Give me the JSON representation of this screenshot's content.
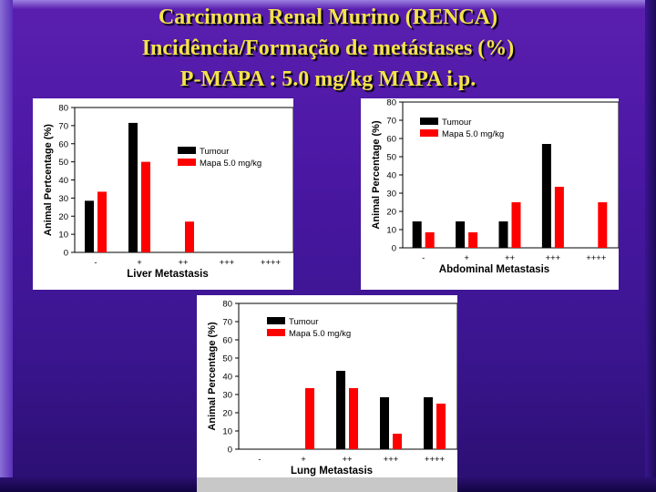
{
  "slide": {
    "title_lines": [
      "Carcinoma Renal Murino (RENCA)",
      "Incidência/Formação de metástases (%)",
      "P-MAPA : 5.0 mg/kg MAPA i.p."
    ]
  },
  "colors": {
    "tumour": "#000000",
    "mapa": "#ff0000",
    "title": "#f4e34a"
  },
  "chart_data": [
    {
      "type": "bar",
      "categories": [
        "-",
        "+",
        "++",
        "+++",
        "++++"
      ],
      "series": [
        {
          "name": "Tumour",
          "color": "#000000",
          "values": [
            28.5,
            71.5,
            0,
            0,
            0
          ]
        },
        {
          "name": "Mapa 5.0 mg/kg",
          "color": "#ff0000",
          "values": [
            33.5,
            50,
            17,
            0,
            0
          ]
        }
      ],
      "xlabel": "Liver Metastasis",
      "ylabel": "Animal Pertcentage (%)",
      "ylim": [
        0,
        80
      ],
      "yticks": [
        "0",
        "10",
        "20",
        "30",
        "40",
        "50",
        "60",
        "70",
        "80"
      ],
      "legend_position": "middle-right"
    },
    {
      "type": "bar",
      "categories": [
        "-",
        "+",
        "++",
        "+++",
        "++++"
      ],
      "series": [
        {
          "name": "Tumour",
          "color": "#000000",
          "values": [
            14.5,
            14.5,
            14.5,
            57,
            0
          ]
        },
        {
          "name": "Mapa 5.0 mg/kg",
          "color": "#ff0000",
          "values": [
            8.5,
            8.5,
            25,
            33.5,
            25
          ]
        }
      ],
      "xlabel": "Abdominal Metastasis",
      "ylabel": "Animal Percentage (%)",
      "ylim": [
        0,
        80
      ],
      "yticks": [
        "0",
        "10",
        "20",
        "30",
        "40",
        "50",
        "60",
        "70",
        "80"
      ],
      "legend_position": "top-left"
    },
    {
      "type": "bar",
      "categories": [
        "-",
        "+",
        "++",
        "+++",
        "++++"
      ],
      "series": [
        {
          "name": "Tumour",
          "color": "#000000",
          "values": [
            0,
            0,
            43,
            28.5,
            28.5
          ]
        },
        {
          "name": "Mapa 5.0 mg/kg",
          "color": "#ff0000",
          "values": [
            0,
            33.5,
            33.5,
            8.5,
            25
          ]
        }
      ],
      "xlabel": "Lung Metastasis",
      "ylabel": "Animal Percentage (%)",
      "ylim": [
        0,
        80
      ],
      "yticks": [
        "0",
        "10",
        "20",
        "30",
        "40",
        "50",
        "60",
        "70",
        "80"
      ],
      "legend_position": "top-left"
    }
  ]
}
